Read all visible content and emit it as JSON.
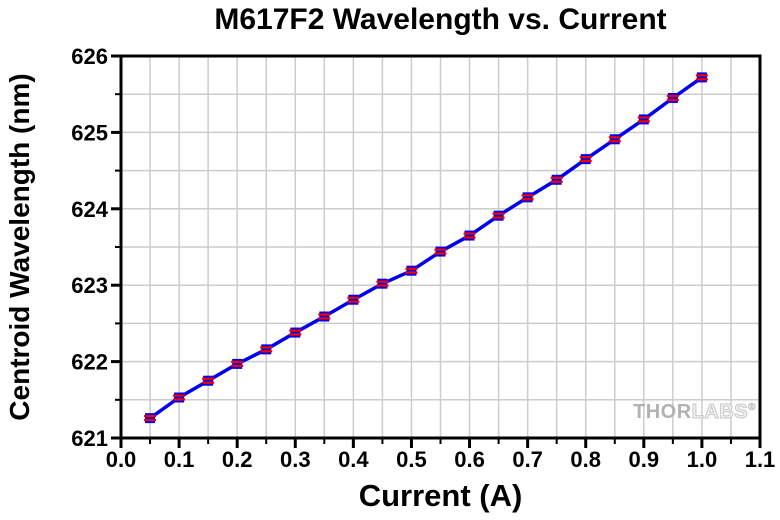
{
  "figure": {
    "watermark": {
      "prefix": "THOR",
      "suffix": "LABS",
      "registered": "®"
    }
  },
  "chart_data": {
    "type": "line",
    "title": "M617F2 Wavelength vs. Current",
    "xlabel": "Current (A)",
    "ylabel": "Centroid Wavelength (nm)",
    "xlim": [
      0.0,
      1.1
    ],
    "ylim": [
      621,
      626
    ],
    "x_ticks": {
      "values": [
        0.0,
        0.1,
        0.2,
        0.3,
        0.4,
        0.5,
        0.6,
        0.7,
        0.8,
        0.9,
        1.0,
        1.1
      ],
      "labels": [
        "0.0",
        "0.1",
        "0.2",
        "0.3",
        "0.4",
        "0.5",
        "0.6",
        "0.7",
        "0.8",
        "0.9",
        "1.0",
        "1.1"
      ],
      "minor_step": 0.05
    },
    "y_ticks": {
      "values": [
        621,
        622,
        623,
        624,
        625,
        626
      ],
      "labels": [
        "621",
        "622",
        "623",
        "624",
        "625",
        "626"
      ],
      "minor_step": 0.5
    },
    "grid": {
      "show": true,
      "at": "major and minor"
    },
    "legend": "none",
    "series": [
      {
        "name": "Centroid Wavelength",
        "marker": "blue square with red horizontal stripes",
        "x": [
          0.05,
          0.1,
          0.15,
          0.2,
          0.25,
          0.3,
          0.35,
          0.4,
          0.45,
          0.5,
          0.55,
          0.6,
          0.65,
          0.7,
          0.75,
          0.8,
          0.85,
          0.9,
          0.95,
          1.0
        ],
        "y": [
          621.26,
          621.53,
          621.75,
          621.97,
          622.16,
          622.38,
          622.59,
          622.81,
          623.02,
          623.19,
          623.44,
          623.65,
          623.91,
          624.15,
          624.38,
          624.65,
          624.91,
          625.17,
          625.45,
          625.72
        ]
      }
    ],
    "colors": {
      "line": "#0000ee",
      "marker_fill": "#0000ee",
      "marker_stripe": "#ee0000",
      "grid": "#cccccc",
      "axis": "#000000",
      "background": "#ffffff",
      "watermark_solid": "#b2b2b2",
      "watermark_outline": "#c6c6c6"
    }
  }
}
